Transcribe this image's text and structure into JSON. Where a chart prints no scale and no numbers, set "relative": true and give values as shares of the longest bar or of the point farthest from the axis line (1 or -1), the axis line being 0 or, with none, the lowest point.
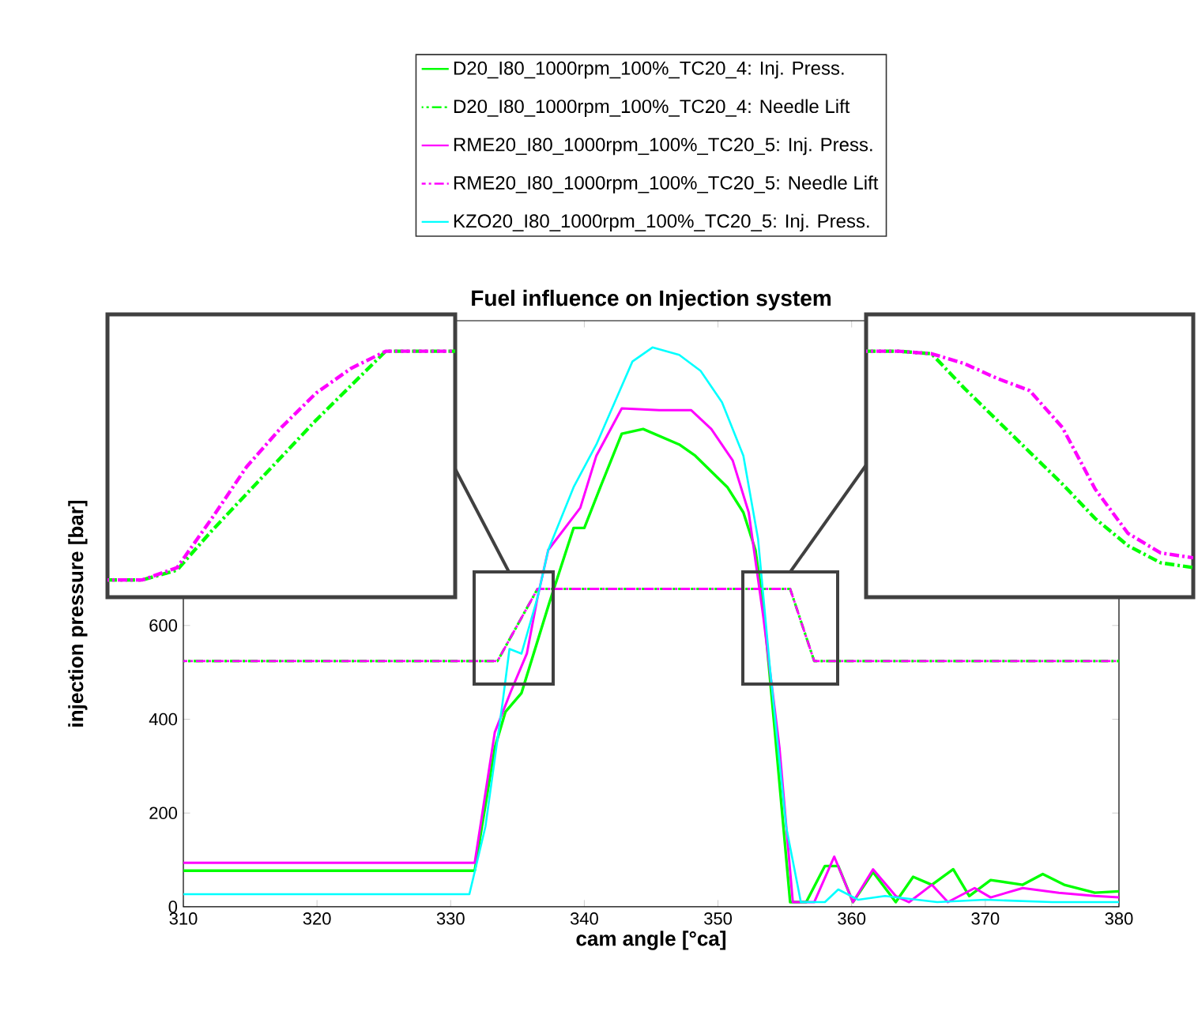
{
  "chart_data": [
    {
      "type": "line",
      "title": "Fuel influence on Injection system",
      "xlabel": "cam angle [°ca]",
      "ylabel": "injection pressure [bar]",
      "xlim": [
        310,
        380
      ],
      "ylim": [
        0,
        1250
      ],
      "xticks": [
        310,
        320,
        330,
        340,
        350,
        360,
        370,
        380
      ],
      "yticks": [
        0,
        200,
        400,
        600
      ],
      "legend": "top",
      "series": [
        {
          "name": "D20_I80_1000rpm_100%_TC20_4: Inj. Press.",
          "color": "#00ff00",
          "line_style": "solid",
          "x": [
            310,
            331.8,
            333.3,
            334.1,
            335.3,
            337.4,
            339.2,
            340.0,
            341.2,
            342.8,
            344.4,
            347.1,
            348.3,
            350.7,
            351.9,
            352.8,
            353.4,
            354.2,
            355.4,
            356.6,
            358.0,
            359.0,
            360.1,
            361.6,
            363.3,
            364.6,
            366.0,
            367.6,
            368.8,
            370.4,
            372.8,
            374.3,
            375.9,
            378.2,
            380
          ],
          "values": [
            77,
            77,
            339,
            416,
            456,
            650,
            808,
            808,
            895,
            1009,
            1019,
            986,
            962,
            895,
            841,
            761,
            640,
            392,
            10,
            10,
            87,
            87,
            10,
            74,
            10,
            64,
            47,
            80,
            23,
            57,
            47,
            70,
            47,
            30,
            33
          ]
        },
        {
          "name": "D20_I80_1000rpm_100%_TC20_4: Needle Lift",
          "color": "#00ff00",
          "line_style": "dashdot",
          "x": [
            310,
            333.5,
            336.5,
            355.4,
            357.2,
            380
          ],
          "values": [
            524,
            524,
            678,
            678,
            524,
            524
          ]
        },
        {
          "name": "RME20_I80_1000rpm_100%_TC20_5: Inj. Press.",
          "color": "#ff00ff",
          "line_style": "solid",
          "x": [
            310,
            331.8,
            333.3,
            334.5,
            335.7,
            336.5,
            337.3,
            339.7,
            340.9,
            342.8,
            345.6,
            348.0,
            349.5,
            351.1,
            352.3,
            353.4,
            354.6,
            355.6,
            357.2,
            358.7,
            360.1,
            361.6,
            363.3,
            364.3,
            366.0,
            367.2,
            369.2,
            370.4,
            372.8,
            375.5,
            378.2,
            380
          ],
          "values": [
            94,
            94,
            372,
            459,
            540,
            660,
            761,
            851,
            962,
            1063,
            1059,
            1059,
            1019,
            952,
            841,
            617,
            339,
            10,
            10,
            107,
            10,
            80,
            23,
            10,
            47,
            10,
            40,
            20,
            40,
            30,
            23,
            20
          ]
        },
        {
          "name": "RME20_I80_1000rpm_100%_TC20_5: Needle Lift",
          "color": "#ff00ff",
          "line_style": "dashdot",
          "x": [
            310,
            333.5,
            336.5,
            355.4,
            357.2,
            380
          ],
          "values": [
            524,
            524,
            678,
            678,
            524,
            524
          ]
        },
        {
          "name": "KZO20_I80_1000rpm_100%_TC20_5: Inj. Press.",
          "color": "#00ffff",
          "line_style": "solid",
          "x": [
            310,
            331.4,
            332.6,
            333.9,
            334.4,
            335.3,
            336.5,
            337.3,
            339.2,
            340.9,
            343.6,
            345.1,
            347.1,
            348.7,
            350.3,
            351.9,
            353.0,
            353.9,
            355.1,
            356.2,
            358.0,
            359.0,
            360.5,
            362.5,
            366.4,
            370,
            375,
            380
          ],
          "values": [
            27,
            27,
            171,
            439,
            550,
            540,
            660,
            761,
            895,
            986,
            1163,
            1193,
            1177,
            1143,
            1076,
            962,
            784,
            506,
            171,
            10,
            10,
            37,
            15,
            23,
            10,
            15,
            10,
            10
          ]
        }
      ]
    },
    {
      "type": "line",
      "relative": true,
      "categories": [
        null,
        null,
        null,
        null,
        null,
        null,
        null,
        null,
        null,
        null,
        null
      ],
      "series": [
        {
          "color": "#00ff00",
          "line_style": "dashdot",
          "values": [
            0.07,
            0.07,
            0.11,
            0.27,
            0.42,
            0.57,
            0.72,
            0.86,
            1,
            1,
            1
          ]
        },
        {
          "color": "#ff00ff",
          "line_style": "dashdot",
          "values": [
            0.07,
            0.07,
            0.12,
            0.32,
            0.53,
            0.69,
            0.83,
            0.93,
            1,
            1,
            1
          ]
        }
      ]
    },
    {
      "type": "line",
      "relative": true,
      "categories": [
        null,
        null,
        null,
        null,
        null,
        null,
        null,
        null,
        null,
        null,
        null
      ],
      "series": [
        {
          "color": "#00ff00",
          "line_style": "dashdot",
          "values": [
            1,
            1,
            0.99,
            0.85,
            0.72,
            0.59,
            0.46,
            0.32,
            0.21,
            0.14,
            0.12
          ]
        },
        {
          "color": "#ff00ff",
          "line_style": "dashdot",
          "values": [
            1,
            1,
            0.99,
            0.95,
            0.89,
            0.84,
            0.69,
            0.44,
            0.26,
            0.18,
            0.16
          ]
        }
      ]
    }
  ]
}
